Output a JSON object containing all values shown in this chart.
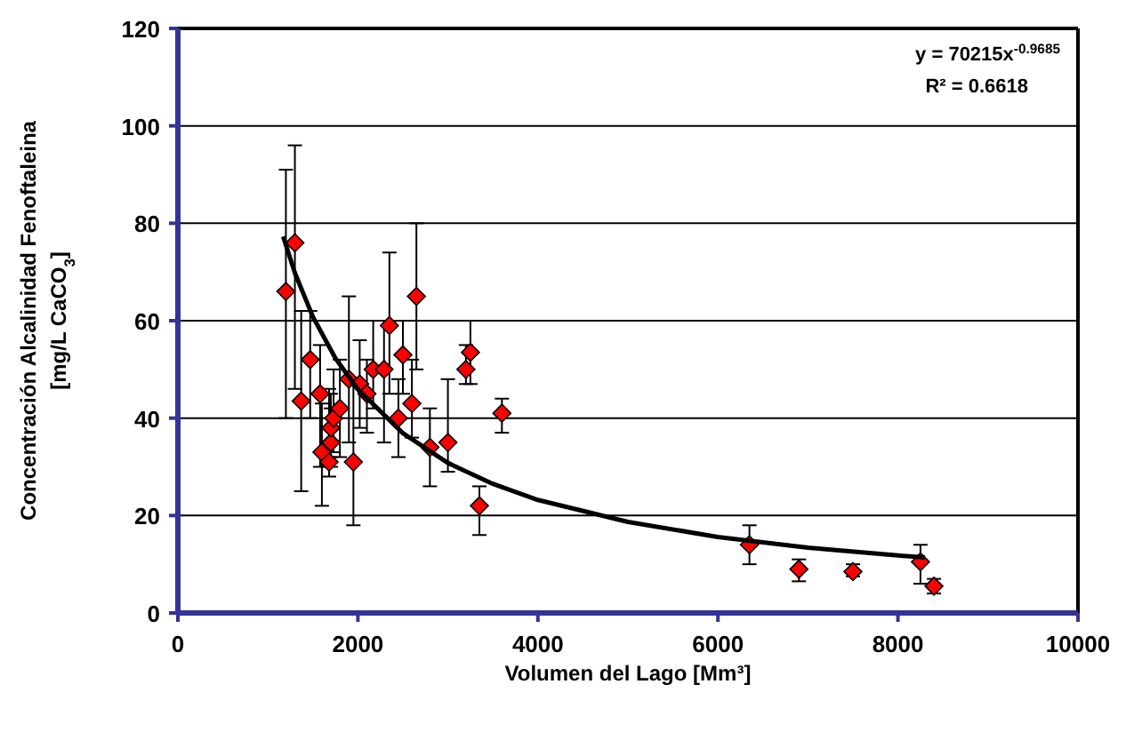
{
  "chart_data": {
    "type": "scatter",
    "xlabel": "Volumen del Lago [Mm³]",
    "ylabel": "Concentración Alcalinidad Fenoftaleina\n[mg/L CaCO$_{3}$]",
    "annotations": [
      "y = 70215x$^{-0.9685}$",
      "R² = 0.6618"
    ],
    "xlim": [
      0,
      10000
    ],
    "xticks": [
      0,
      2000,
      4000,
      6000,
      8000,
      10000
    ],
    "ylim": [
      0,
      120
    ],
    "yticks": [
      0,
      20,
      40,
      60,
      80,
      100,
      120
    ],
    "grid": "y",
    "marker": "diamond",
    "series": [
      {
        "color": "#ff0000",
        "x": [
          1200,
          1300,
          1370,
          1470,
          1580,
          1600,
          1680,
          1700,
          1700,
          1730,
          1800,
          1950,
          1900,
          2020,
          2100,
          2170,
          2290,
          2350,
          2450,
          2500,
          2600,
          2650,
          2800,
          3000,
          3200,
          3250,
          3350,
          3600,
          6350,
          6900,
          7500,
          8250,
          8400
        ],
        "values": [
          66,
          76,
          43.5,
          52,
          45,
          33,
          31,
          35,
          38,
          40,
          42,
          31,
          48,
          47,
          45,
          50,
          50,
          59,
          40,
          53,
          43,
          65,
          34,
          35,
          50,
          53.5,
          22,
          41,
          14,
          9,
          8.5,
          10.5,
          5.5
        ],
        "errors": [
          [
            40,
            91
          ],
          [
            46,
            96
          ],
          [
            25,
            62
          ],
          [
            40,
            62
          ],
          [
            30,
            55
          ],
          [
            22,
            43
          ],
          [
            28,
            46
          ],
          [
            30,
            42
          ],
          [
            32,
            45
          ],
          [
            33,
            50
          ],
          [
            32,
            52
          ],
          [
            18,
            48
          ],
          [
            35,
            65
          ],
          [
            38,
            56
          ],
          [
            37,
            52
          ],
          [
            42,
            60
          ],
          [
            35,
            60
          ],
          [
            45,
            74
          ],
          [
            32,
            48
          ],
          [
            45,
            60
          ],
          [
            36,
            52
          ],
          [
            50,
            80
          ],
          [
            26,
            42
          ],
          [
            29,
            48
          ],
          [
            47,
            55
          ],
          [
            47,
            60
          ],
          [
            16,
            26
          ],
          [
            37,
            44
          ],
          [
            10,
            18
          ],
          [
            6.5,
            11
          ],
          [
            7.5,
            10
          ],
          [
            6,
            14
          ],
          [
            4,
            7
          ]
        ]
      },
      {
        "type": "line",
        "color": "#000000",
        "marker": "none",
        "x": [
          1170,
          1300,
          1500,
          1750,
          2000,
          2500,
          3000,
          3500,
          4000,
          5000,
          6000,
          7000,
          8000,
          8300
        ],
        "values": [
          77.3,
          69.8,
          60.8,
          52.3,
          45.9,
          36.9,
          30.8,
          26.5,
          23.2,
          18.7,
          15.6,
          13.4,
          11.8,
          11.4
        ]
      }
    ]
  }
}
